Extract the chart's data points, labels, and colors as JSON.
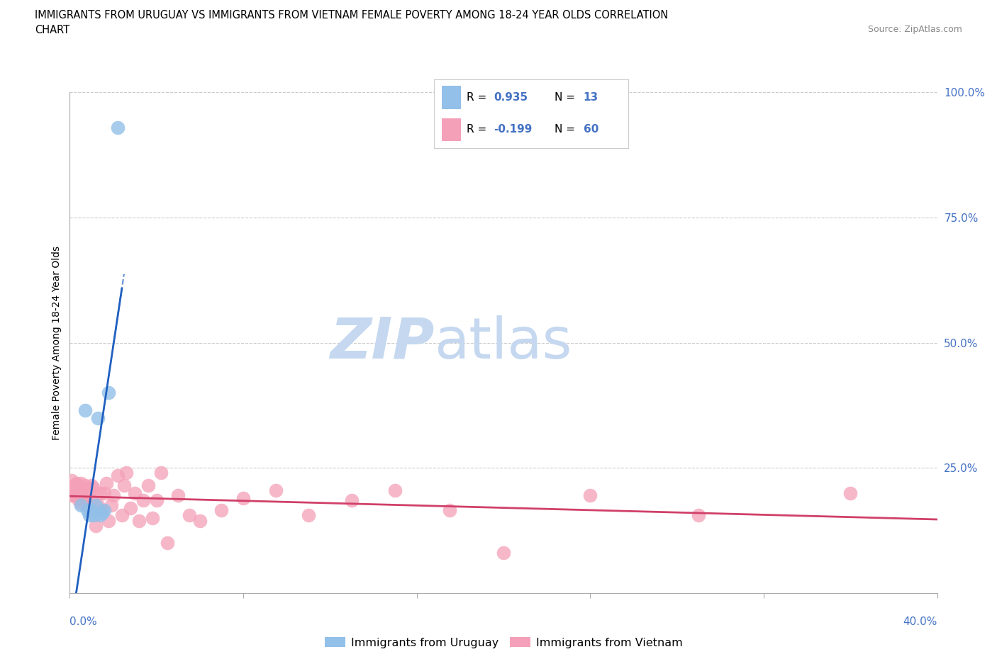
{
  "title_line1": "IMMIGRANTS FROM URUGUAY VS IMMIGRANTS FROM VIETNAM FEMALE POVERTY AMONG 18-24 YEAR OLDS CORRELATION",
  "title_line2": "CHART",
  "source_text": "Source: ZipAtlas.com",
  "ylabel": "Female Poverty Among 18-24 Year Olds",
  "xlim": [
    0.0,
    0.4
  ],
  "ylim": [
    0.0,
    1.0
  ],
  "uruguay_R": 0.935,
  "uruguay_N": 13,
  "vietnam_R": -0.199,
  "vietnam_N": 60,
  "uruguay_color": "#92C0E8",
  "uruguay_line_color": "#2060C0",
  "vietnam_color": "#F4A0B8",
  "vietnam_line_color": "#D04068",
  "watermark_zip": "ZIP",
  "watermark_atlas": "atlas",
  "watermark_color": "#C5D8F0",
  "grid_color": "#CCCCCC",
  "background_color": "#FFFFFF",
  "uruguay_x": [
    0.005,
    0.007,
    0.008,
    0.009,
    0.01,
    0.011,
    0.012,
    0.013,
    0.014,
    0.015,
    0.016,
    0.018,
    0.022
  ],
  "uruguay_y": [
    0.175,
    0.365,
    0.165,
    0.155,
    0.165,
    0.155,
    0.175,
    0.35,
    0.155,
    0.16,
    0.165,
    0.4,
    0.93
  ],
  "vietnam_x": [
    0.001,
    0.001,
    0.002,
    0.002,
    0.002,
    0.003,
    0.003,
    0.003,
    0.004,
    0.004,
    0.004,
    0.005,
    0.005,
    0.005,
    0.006,
    0.006,
    0.007,
    0.007,
    0.008,
    0.008,
    0.009,
    0.01,
    0.01,
    0.011,
    0.012,
    0.013,
    0.014,
    0.015,
    0.016,
    0.017,
    0.018,
    0.019,
    0.02,
    0.022,
    0.024,
    0.025,
    0.026,
    0.028,
    0.03,
    0.032,
    0.034,
    0.036,
    0.038,
    0.04,
    0.042,
    0.045,
    0.05,
    0.055,
    0.06,
    0.07,
    0.08,
    0.095,
    0.11,
    0.13,
    0.15,
    0.175,
    0.2,
    0.24,
    0.29,
    0.36
  ],
  "vietnam_y": [
    0.225,
    0.195,
    0.215,
    0.205,
    0.195,
    0.22,
    0.21,
    0.195,
    0.215,
    0.195,
    0.185,
    0.22,
    0.2,
    0.18,
    0.21,
    0.195,
    0.215,
    0.185,
    0.21,
    0.175,
    0.2,
    0.215,
    0.185,
    0.21,
    0.135,
    0.175,
    0.2,
    0.165,
    0.2,
    0.22,
    0.145,
    0.175,
    0.195,
    0.235,
    0.155,
    0.215,
    0.24,
    0.17,
    0.2,
    0.145,
    0.185,
    0.215,
    0.15,
    0.185,
    0.24,
    0.1,
    0.195,
    0.155,
    0.145,
    0.165,
    0.19,
    0.205,
    0.155,
    0.185,
    0.205,
    0.165,
    0.08,
    0.195,
    0.155,
    0.2
  ]
}
